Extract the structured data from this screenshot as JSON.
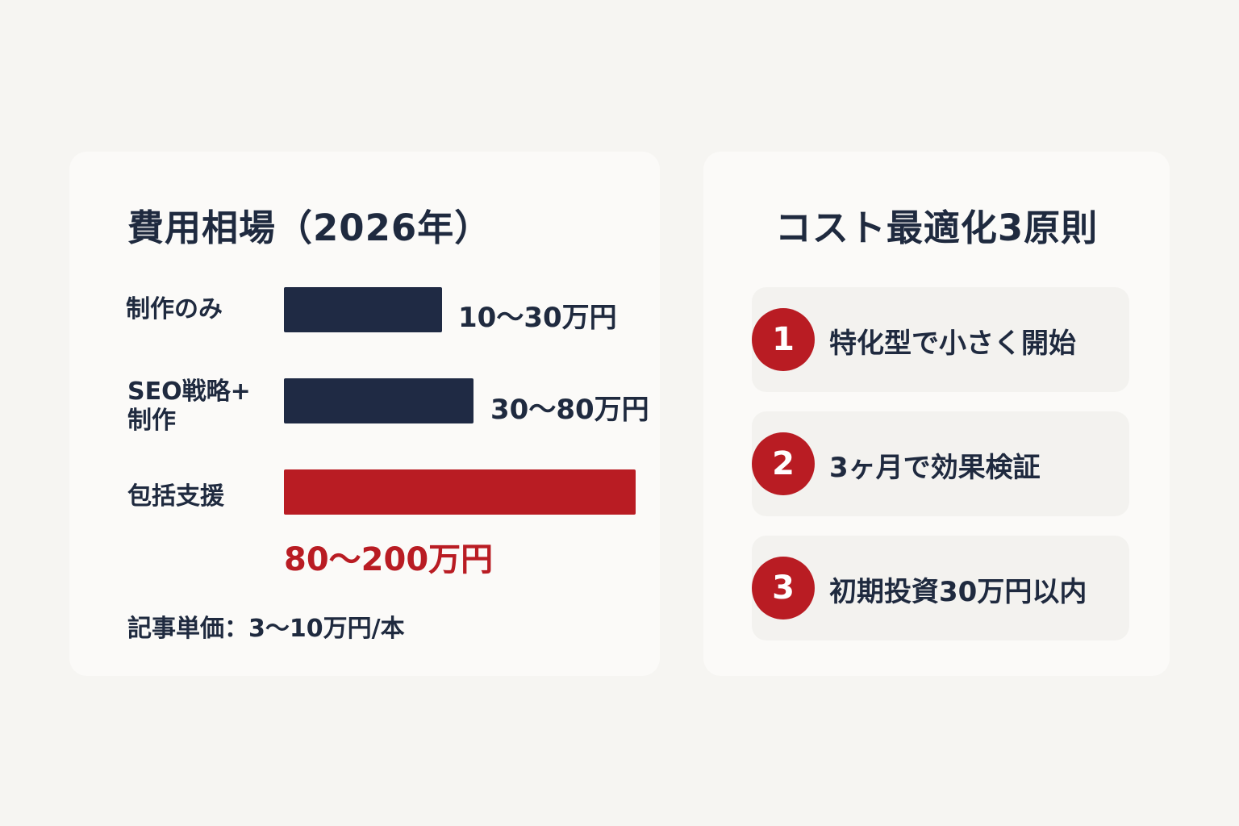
{
  "left_card": {
    "title": "費用相場（2026年）",
    "footnote": "記事単価：3〜10万円/本"
  },
  "right_card": {
    "title": "コスト最適化3原則",
    "principles": [
      {
        "number": "1",
        "text": "特化型で小さく開始"
      },
      {
        "number": "2",
        "text": "3ヶ月で効果検証"
      },
      {
        "number": "3",
        "text": "初期投資30万円以内"
      }
    ]
  },
  "colors": {
    "background": "#f6f5f2",
    "card": "#fbfaf8",
    "navy": "#1f2a44",
    "accent_red": "#b91c23"
  },
  "chart_data": {
    "type": "bar",
    "orientation": "horizontal",
    "title": "費用相場（2026年）",
    "unit": "万円",
    "categories": [
      "制作のみ",
      "SEO戦略+\n制作",
      "包括支援"
    ],
    "range_labels": [
      "10〜30万円",
      "30〜80万円",
      "80〜200万円"
    ],
    "ranges": [
      [
        10,
        30
      ],
      [
        30,
        80
      ],
      [
        80,
        200
      ]
    ],
    "relative_lengths": [
      0.45,
      0.54,
      1.0
    ],
    "highlight_index": 2,
    "bar_colors": [
      "#1f2a44",
      "#1f2a44",
      "#b91c23"
    ],
    "axes_visible": false,
    "grid": false
  }
}
